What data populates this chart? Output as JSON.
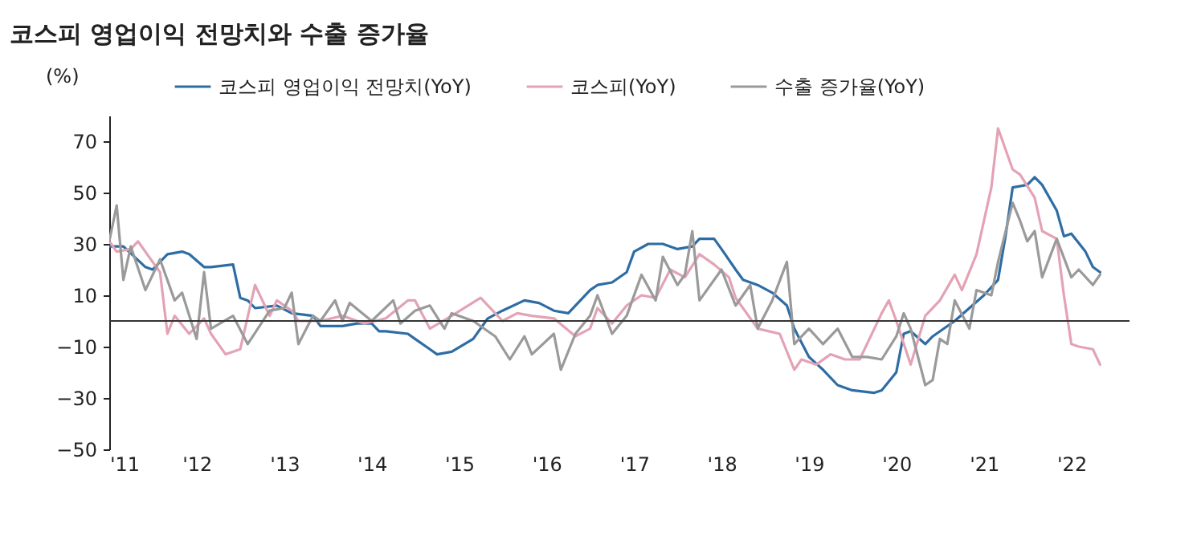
{
  "chart_data": {
    "type": "line",
    "title": "코스피 영업이익 전망치와 수출 증가율",
    "ylabel": "(%)",
    "legend": "top",
    "grid": false,
    "line_style": "solid",
    "xlim": [
      "2011-01",
      "2022-09"
    ],
    "xticks": [
      {
        "value": "2011",
        "label": "'11"
      },
      {
        "value": "2012",
        "label": "'12"
      },
      {
        "value": "2013",
        "label": "'13"
      },
      {
        "value": "2014",
        "label": "'14"
      },
      {
        "value": "2015",
        "label": "'15"
      },
      {
        "value": "2016",
        "label": "'16"
      },
      {
        "value": "2017",
        "label": "'17"
      },
      {
        "value": "2018",
        "label": "'18"
      },
      {
        "value": "2019",
        "label": "'19"
      },
      {
        "value": "2020",
        "label": "'20"
      },
      {
        "value": "2021",
        "label": "'21"
      },
      {
        "value": "2022",
        "label": "'22"
      }
    ],
    "ylim": [
      -50,
      80
    ],
    "yticks": [
      -50,
      -30,
      -10,
      10,
      30,
      50,
      70
    ],
    "ref_lines": [
      {
        "axis": "y",
        "value": 0,
        "color": "#333333"
      }
    ],
    "series": [
      {
        "name": "코스피 영업이익 전망치(YoY)",
        "color": "#2e6da4",
        "x": [
          "2011-01",
          "2011-03",
          "2011-06",
          "2011-07",
          "2011-09",
          "2011-11",
          "2011-12",
          "2012-02",
          "2012-03",
          "2012-06",
          "2012-07",
          "2012-08",
          "2012-09",
          "2012-12",
          "2013-02",
          "2013-05",
          "2013-06",
          "2013-09",
          "2013-11",
          "2014-01",
          "2014-02",
          "2014-03",
          "2014-06",
          "2014-07",
          "2014-09",
          "2014-10",
          "2014-12",
          "2015-03",
          "2015-05",
          "2015-07",
          "2015-10",
          "2015-12",
          "2016-02",
          "2016-04",
          "2016-07",
          "2016-08",
          "2016-10",
          "2016-12",
          "2017-01",
          "2017-03",
          "2017-05",
          "2017-07",
          "2017-09",
          "2017-10",
          "2017-12",
          "2018-01",
          "2018-03",
          "2018-04",
          "2018-06",
          "2018-08",
          "2018-10",
          "2018-11",
          "2019-01",
          "2019-03",
          "2019-05",
          "2019-07",
          "2019-10",
          "2019-11",
          "2020-01",
          "2020-02",
          "2020-03",
          "2020-05",
          "2020-06",
          "2020-09",
          "2020-11",
          "2021-01",
          "2021-03",
          "2021-04",
          "2021-05",
          "2021-07",
          "2021-08",
          "2021-09",
          "2021-11",
          "2021-12",
          "2022-01",
          "2022-03",
          "2022-04",
          "2022-05"
        ],
        "values": [
          29,
          29,
          21,
          20,
          26,
          27,
          26,
          21,
          21,
          22,
          9,
          8,
          5,
          6,
          3,
          2,
          -2,
          -2,
          -1,
          -1,
          -4,
          -4,
          -5,
          -7,
          -11,
          -13,
          -12,
          -7,
          1,
          4,
          8,
          7,
          4,
          3,
          12,
          14,
          15,
          19,
          27,
          30,
          30,
          28,
          29,
          32,
          32,
          28,
          20,
          16,
          14,
          11,
          6,
          -3,
          -14,
          -19,
          -25,
          -27,
          -28,
          -27,
          -20,
          -5,
          -4,
          -9,
          -6,
          0,
          5,
          10,
          16,
          33,
          52,
          53,
          56,
          53,
          43,
          33,
          34,
          27,
          21,
          19
        ]
      },
      {
        "name": "코스피(YoY)",
        "color": "#e3a3b5",
        "x": [
          "2011-01",
          "2011-02",
          "2011-04",
          "2011-05",
          "2011-07",
          "2011-08",
          "2011-09",
          "2011-10",
          "2011-12",
          "2012-02",
          "2012-03",
          "2012-05",
          "2012-07",
          "2012-09",
          "2012-11",
          "2012-12",
          "2013-02",
          "2013-03",
          "2013-06",
          "2013-09",
          "2013-12",
          "2014-03",
          "2014-06",
          "2014-07",
          "2014-09",
          "2014-12",
          "2015-04",
          "2015-07",
          "2015-09",
          "2015-11",
          "2016-02",
          "2016-05",
          "2016-07",
          "2016-08",
          "2016-10",
          "2016-12",
          "2017-02",
          "2017-04",
          "2017-06",
          "2017-08",
          "2017-10",
          "2017-12",
          "2018-02",
          "2018-03",
          "2018-06",
          "2018-09",
          "2018-11",
          "2018-12",
          "2019-02",
          "2019-04",
          "2019-06",
          "2019-08",
          "2019-11",
          "2019-12",
          "2020-01",
          "2020-03",
          "2020-05",
          "2020-07",
          "2020-09",
          "2020-10",
          "2020-12",
          "2021-02",
          "2021-03",
          "2021-05",
          "2021-06",
          "2021-08",
          "2021-09",
          "2021-11",
          "2021-12",
          "2022-01",
          "2022-02",
          "2022-04",
          "2022-05"
        ],
        "values": [
          31,
          27,
          28,
          31,
          23,
          19,
          -5,
          2,
          -5,
          1,
          -5,
          -13,
          -11,
          14,
          2,
          8,
          4,
          0,
          0,
          2,
          -1,
          1,
          8,
          8,
          -3,
          2,
          9,
          0,
          3,
          2,
          1,
          -6,
          -3,
          5,
          -1,
          6,
          10,
          9,
          20,
          17,
          26,
          22,
          17,
          9,
          -3,
          -5,
          -19,
          -15,
          -17,
          -13,
          -15,
          -15,
          3,
          8,
          0,
          -17,
          2,
          8,
          18,
          12,
          26,
          52,
          75,
          59,
          57,
          48,
          35,
          32,
          10,
          -9,
          -10,
          -11,
          -17
        ]
      },
      {
        "name": "수출 증가율(YoY)",
        "color": "#9a9a9a",
        "x": [
          "2011-01",
          "2011-02",
          "2011-03",
          "2011-04",
          "2011-06",
          "2011-08",
          "2011-10",
          "2011-11",
          "2012-01",
          "2012-02",
          "2012-03",
          "2012-06",
          "2012-08",
          "2012-11",
          "2013-01",
          "2013-02",
          "2013-03",
          "2013-05",
          "2013-06",
          "2013-08",
          "2013-09",
          "2013-10",
          "2014-01",
          "2014-04",
          "2014-05",
          "2014-07",
          "2014-09",
          "2014-11",
          "2014-12",
          "2015-03",
          "2015-06",
          "2015-08",
          "2015-10",
          "2015-11",
          "2016-02",
          "2016-03",
          "2016-05",
          "2016-07",
          "2016-08",
          "2016-10",
          "2016-12",
          "2017-02",
          "2017-04",
          "2017-05",
          "2017-07",
          "2017-08",
          "2017-09",
          "2017-10",
          "2018-01",
          "2018-03",
          "2018-05",
          "2018-06",
          "2018-08",
          "2018-10",
          "2018-11",
          "2019-01",
          "2019-03",
          "2019-05",
          "2019-07",
          "2019-09",
          "2019-11",
          "2020-01",
          "2020-02",
          "2020-03",
          "2020-05",
          "2020-06",
          "2020-07",
          "2020-08",
          "2020-09",
          "2020-11",
          "2020-12",
          "2021-02",
          "2021-03",
          "2021-05",
          "2021-06",
          "2021-07",
          "2021-08",
          "2021-09",
          "2021-11",
          "2022-01",
          "2022-02",
          "2022-04",
          "2022-05"
        ],
        "values": [
          31,
          45,
          16,
          29,
          12,
          24,
          8,
          11,
          -7,
          19,
          -3,
          2,
          -9,
          4,
          5,
          11,
          -9,
          2,
          0,
          8,
          0,
          7,
          0,
          8,
          -1,
          4,
          6,
          -3,
          3,
          0,
          -6,
          -15,
          -6,
          -13,
          -5,
          -19,
          -5,
          2,
          10,
          -5,
          2,
          18,
          8,
          25,
          14,
          18,
          35,
          8,
          20,
          6,
          14,
          -3,
          8,
          23,
          -9,
          -3,
          -9,
          -3,
          -14,
          -14,
          -15,
          -6,
          3,
          -3,
          -25,
          -23,
          -7,
          -9,
          8,
          -3,
          12,
          10,
          23,
          46,
          39,
          31,
          35,
          17,
          32,
          17,
          20,
          14,
          18
        ]
      }
    ]
  }
}
